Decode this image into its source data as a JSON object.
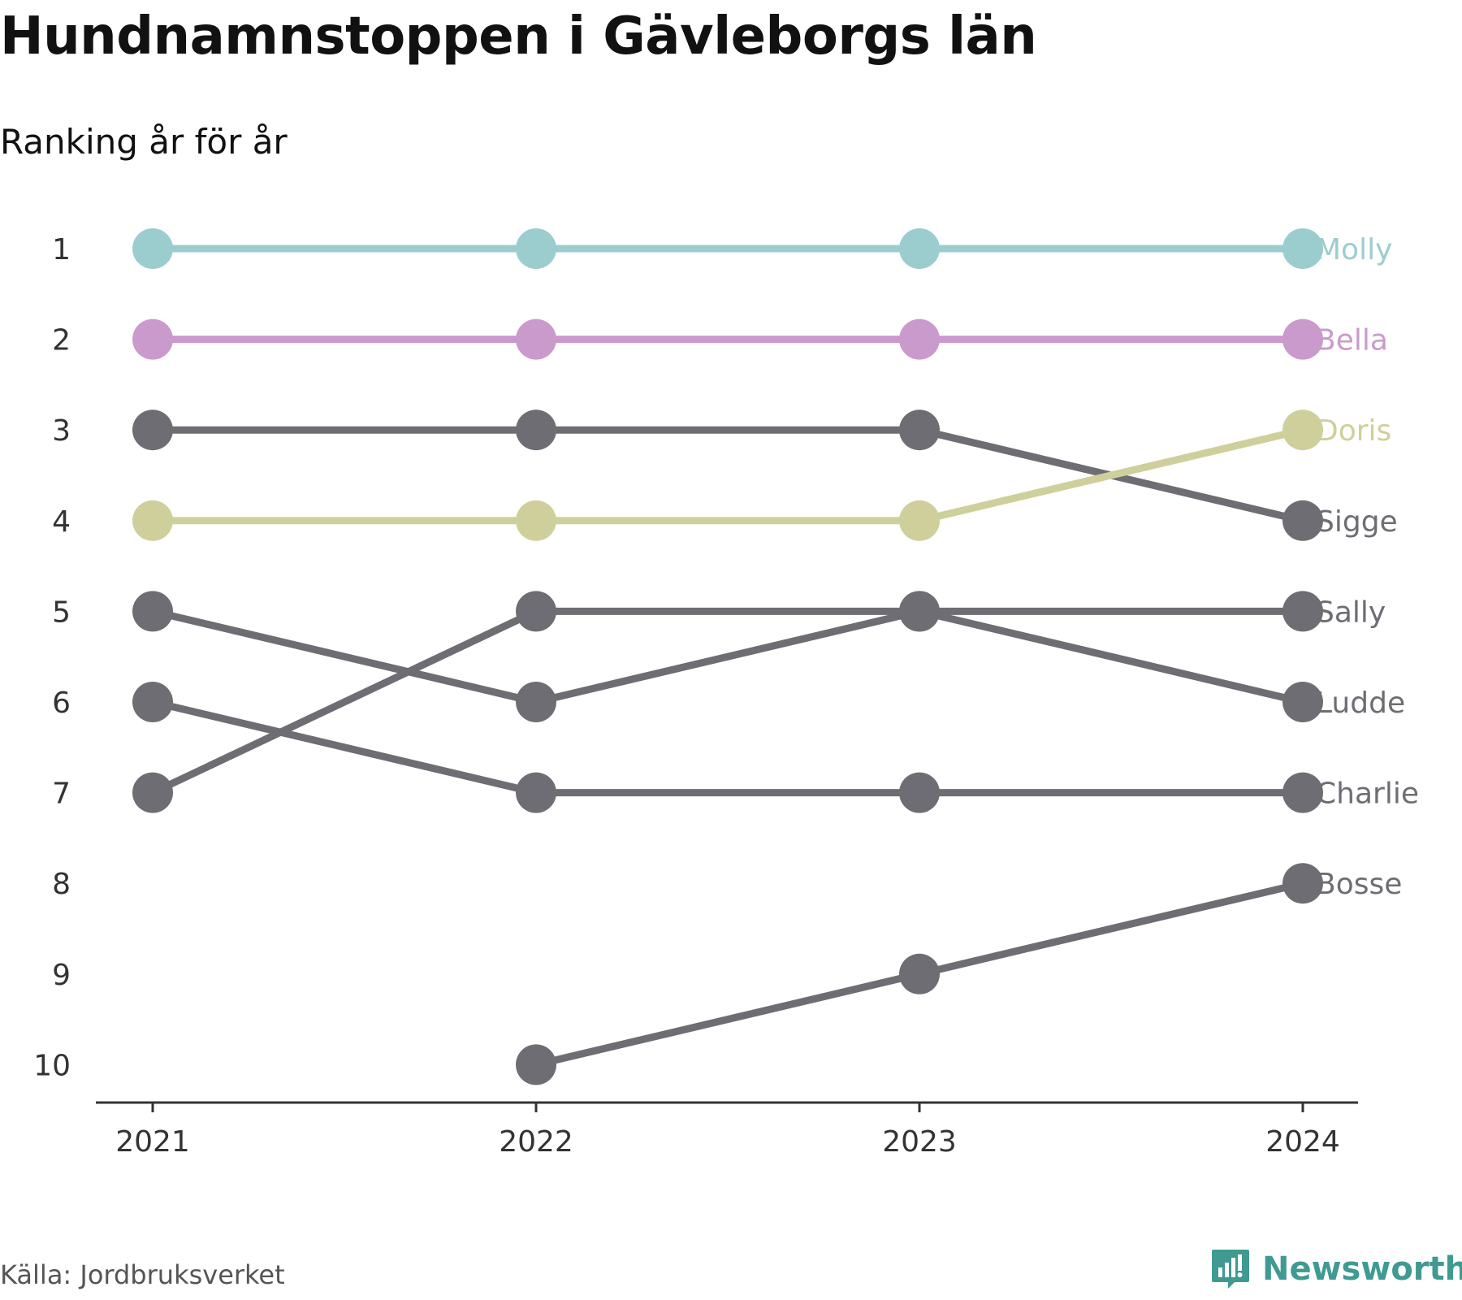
{
  "header": {
    "title": "Hundnamnstoppen i Gävleborgs län",
    "subtitle": "Ranking år för år"
  },
  "footer": {
    "source": "Källa: Jordbruksverket",
    "brand": "Newsworthy",
    "brand_icon": "newsworthy-logo-icon",
    "brand_color": "#3f9a92"
  },
  "chart_data": {
    "type": "line",
    "subtype": "bump",
    "title": "Hundnamnstoppen i Gävleborgs län",
    "subtitle": "Ranking år för år",
    "xlabel": "",
    "ylabel": "",
    "x": [
      "2021",
      "2022",
      "2023",
      "2024"
    ],
    "y_ticks": [
      "1",
      "2",
      "3",
      "4",
      "5",
      "6",
      "7",
      "8",
      "9",
      "10"
    ],
    "ylim": [
      1,
      10
    ],
    "y_inverted": true,
    "grid": false,
    "legend": "direct labels at right end",
    "series": [
      {
        "name": "Molly",
        "color": "#9ccdce",
        "values": [
          1,
          1,
          1,
          1
        ]
      },
      {
        "name": "Bella",
        "color": "#cb9acd",
        "values": [
          2,
          2,
          2,
          2
        ]
      },
      {
        "name": "Doris",
        "color": "#cfcf9b",
        "values": [
          4,
          4,
          4,
          3
        ]
      },
      {
        "name": "Sigge",
        "color": "#6e6d74",
        "values": [
          3,
          3,
          3,
          4
        ]
      },
      {
        "name": "Sally",
        "color": "#6e6d74",
        "values": [
          7,
          5,
          5,
          5
        ]
      },
      {
        "name": "Ludde",
        "color": "#6e6d74",
        "values": [
          5,
          6,
          5,
          6
        ]
      },
      {
        "name": "Charlie",
        "color": "#6e6d74",
        "values": [
          6,
          7,
          7,
          7
        ]
      },
      {
        "name": "Bosse",
        "color": "#6e6d74",
        "values": [
          null,
          10,
          9,
          8
        ]
      }
    ]
  }
}
